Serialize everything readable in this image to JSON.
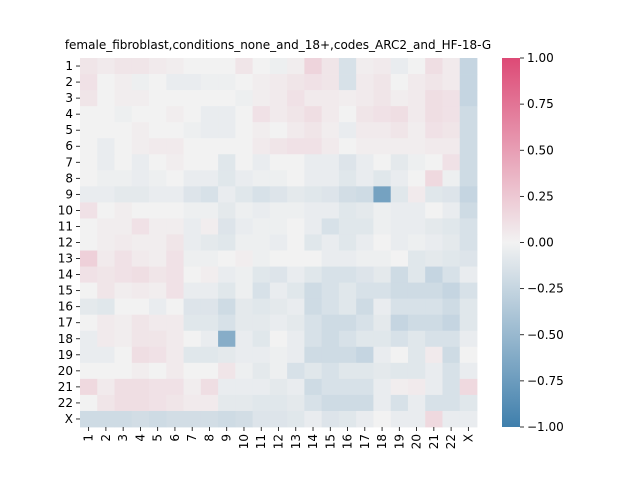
{
  "chart_data": {
    "type": "heatmap",
    "title": "female_fibroblast,conditions_none_and_18+,codes_ARC2_and_HF-18-G",
    "xlabel": "",
    "ylabel": "",
    "row_labels": [
      "1",
      "2",
      "3",
      "4",
      "5",
      "6",
      "7",
      "8",
      "9",
      "10",
      "11",
      "12",
      "13",
      "14",
      "15",
      "16",
      "17",
      "18",
      "19",
      "20",
      "21",
      "22",
      "X"
    ],
    "col_labels": [
      "1",
      "2",
      "3",
      "4",
      "5",
      "6",
      "7",
      "8",
      "9",
      "10",
      "11",
      "12",
      "13",
      "14",
      "15",
      "16",
      "17",
      "18",
      "19",
      "20",
      "21",
      "22",
      "X"
    ],
    "colorbar": {
      "min": -1.0,
      "max": 1.0,
      "ticks": [
        1.0,
        0.75,
        0.5,
        0.25,
        0.0,
        -0.25,
        -0.5,
        -0.75,
        -1.0
      ],
      "tick_labels": [
        "1.00",
        "0.75",
        "0.50",
        "0.25",
        "0.00",
        "−0.25",
        "−0.50",
        "−0.75",
        "−1.00"
      ],
      "low_color": "#3f7fac",
      "mid_color": "#f2f2f2",
      "high_color": "#dd4a76"
    },
    "values": [
      [
        0.08,
        0.05,
        0.08,
        0.08,
        0.05,
        0.03,
        0.0,
        0.0,
        0.0,
        0.08,
        0.0,
        -0.03,
        0.03,
        0.18,
        0.08,
        -0.15,
        0.03,
        0.05,
        -0.05,
        0.0,
        0.12,
        0.05,
        -0.25
      ],
      [
        0.1,
        0.0,
        0.03,
        -0.03,
        0.0,
        -0.05,
        -0.05,
        -0.03,
        -0.03,
        0.0,
        0.03,
        0.05,
        0.08,
        0.1,
        0.08,
        -0.15,
        0.05,
        0.08,
        0.0,
        0.05,
        0.08,
        0.05,
        -0.25
      ],
      [
        0.08,
        0.0,
        0.03,
        0.03,
        0.0,
        0.0,
        0.0,
        0.0,
        0.0,
        -0.03,
        0.03,
        0.05,
        0.1,
        0.05,
        0.05,
        0.03,
        0.05,
        0.08,
        0.03,
        0.05,
        0.12,
        0.1,
        -0.25
      ],
      [
        0.0,
        0.0,
        -0.03,
        0.0,
        0.0,
        0.03,
        0.0,
        -0.05,
        -0.05,
        0.0,
        0.1,
        0.05,
        0.08,
        0.12,
        0.05,
        0.0,
        0.08,
        0.1,
        0.12,
        0.05,
        0.12,
        0.1,
        -0.2
      ],
      [
        0.0,
        0.0,
        0.0,
        0.03,
        0.0,
        0.0,
        -0.03,
        -0.05,
        -0.05,
        0.0,
        0.03,
        0.0,
        0.05,
        0.08,
        0.03,
        -0.05,
        0.05,
        0.05,
        0.08,
        0.03,
        0.1,
        0.08,
        -0.2
      ],
      [
        0.0,
        -0.05,
        0.0,
        0.03,
        0.05,
        0.05,
        0.0,
        0.0,
        0.0,
        0.0,
        0.05,
        0.08,
        0.1,
        0.1,
        0.05,
        0.0,
        0.03,
        0.03,
        0.03,
        0.03,
        0.05,
        0.05,
        -0.2
      ],
      [
        0.0,
        -0.05,
        0.0,
        -0.05,
        0.0,
        0.03,
        0.0,
        0.0,
        -0.1,
        0.0,
        -0.05,
        0.0,
        0.0,
        -0.05,
        -0.05,
        -0.12,
        -0.05,
        0.0,
        -0.08,
        -0.03,
        0.0,
        0.1,
        -0.2
      ],
      [
        0.0,
        -0.03,
        -0.03,
        -0.05,
        -0.03,
        0.0,
        -0.05,
        -0.05,
        -0.1,
        -0.05,
        -0.03,
        -0.03,
        0.0,
        -0.05,
        -0.05,
        -0.1,
        -0.05,
        -0.1,
        -0.05,
        0.0,
        0.15,
        -0.03,
        -0.2
      ],
      [
        -0.05,
        -0.05,
        -0.08,
        -0.08,
        -0.05,
        -0.05,
        -0.12,
        -0.15,
        -0.05,
        -0.1,
        -0.15,
        -0.12,
        -0.08,
        -0.1,
        -0.12,
        -0.18,
        -0.2,
        -0.7,
        -0.1,
        0.05,
        -0.1,
        -0.12,
        -0.25
      ],
      [
        0.1,
        0.0,
        0.03,
        0.0,
        0.0,
        0.0,
        -0.03,
        -0.03,
        -0.08,
        -0.03,
        -0.05,
        -0.03,
        -0.03,
        -0.05,
        -0.05,
        -0.1,
        -0.08,
        -0.03,
        -0.05,
        -0.05,
        0.0,
        -0.05,
        -0.2
      ],
      [
        0.0,
        0.03,
        0.03,
        0.1,
        0.03,
        0.03,
        -0.05,
        0.03,
        -0.12,
        -0.05,
        -0.03,
        -0.03,
        0.0,
        -0.05,
        -0.15,
        -0.1,
        -0.1,
        -0.03,
        -0.05,
        -0.05,
        -0.08,
        -0.1,
        -0.15
      ],
      [
        0.0,
        0.03,
        0.05,
        0.03,
        0.03,
        0.08,
        -0.05,
        -0.08,
        -0.1,
        -0.03,
        -0.03,
        -0.05,
        0.0,
        -0.1,
        -0.05,
        -0.1,
        -0.05,
        0.0,
        -0.05,
        -0.03,
        -0.05,
        -0.08,
        -0.15
      ],
      [
        0.2,
        0.05,
        0.1,
        0.05,
        0.03,
        0.1,
        -0.03,
        -0.03,
        0.0,
        0.03,
        -0.03,
        0.0,
        0.0,
        0.0,
        -0.05,
        -0.05,
        -0.03,
        -0.03,
        0.0,
        -0.1,
        -0.08,
        -0.1,
        -0.12
      ],
      [
        0.1,
        0.08,
        0.1,
        0.12,
        0.08,
        0.1,
        0.0,
        0.03,
        -0.05,
        -0.03,
        -0.1,
        -0.12,
        -0.05,
        -0.1,
        -0.15,
        -0.15,
        -0.12,
        -0.08,
        -0.2,
        -0.1,
        -0.25,
        -0.15,
        -0.05
      ],
      [
        0.0,
        0.08,
        0.03,
        0.05,
        0.03,
        0.1,
        -0.05,
        -0.05,
        -0.1,
        -0.03,
        -0.15,
        -0.05,
        -0.1,
        -0.2,
        -0.15,
        -0.1,
        -0.15,
        -0.15,
        -0.2,
        -0.2,
        -0.2,
        -0.25,
        -0.15
      ],
      [
        -0.08,
        -0.1,
        0.0,
        0.0,
        -0.05,
        0.0,
        -0.12,
        -0.12,
        -0.2,
        -0.08,
        -0.1,
        -0.08,
        -0.05,
        -0.2,
        -0.15,
        -0.1,
        -0.2,
        -0.05,
        -0.15,
        -0.15,
        -0.15,
        -0.2,
        -0.1
      ],
      [
        0.0,
        0.05,
        0.03,
        0.08,
        0.05,
        0.05,
        -0.1,
        -0.1,
        -0.15,
        -0.08,
        -0.08,
        -0.05,
        -0.08,
        -0.15,
        -0.2,
        -0.2,
        -0.15,
        -0.08,
        -0.25,
        -0.2,
        -0.2,
        -0.25,
        -0.1
      ],
      [
        -0.05,
        0.05,
        0.03,
        0.08,
        0.08,
        0.05,
        0.0,
        -0.05,
        -0.6,
        -0.05,
        -0.1,
        0.0,
        -0.05,
        -0.15,
        -0.2,
        -0.15,
        -0.1,
        -0.1,
        -0.15,
        -0.1,
        -0.15,
        -0.15,
        -0.05
      ],
      [
        -0.05,
        -0.05,
        0.0,
        0.12,
        0.1,
        0.05,
        -0.1,
        -0.1,
        -0.08,
        -0.05,
        -0.05,
        -0.03,
        -0.05,
        -0.2,
        -0.2,
        -0.2,
        -0.25,
        -0.05,
        0.0,
        -0.1,
        0.05,
        -0.2,
        0.0
      ],
      [
        0.0,
        0.0,
        0.0,
        0.03,
        0.0,
        0.05,
        0.0,
        0.0,
        0.08,
        -0.03,
        -0.08,
        -0.03,
        -0.15,
        -0.1,
        -0.15,
        -0.1,
        -0.1,
        -0.08,
        -0.1,
        -0.1,
        -0.05,
        -0.15,
        -0.05
      ],
      [
        0.15,
        0.05,
        0.12,
        0.12,
        0.1,
        0.1,
        0.03,
        0.12,
        -0.05,
        -0.05,
        -0.05,
        -0.08,
        -0.05,
        -0.2,
        -0.15,
        -0.15,
        -0.15,
        -0.05,
        0.03,
        0.05,
        -0.05,
        -0.15,
        0.15
      ],
      [
        0.0,
        0.08,
        0.12,
        0.12,
        0.1,
        0.08,
        0.05,
        0.05,
        -0.08,
        -0.08,
        -0.1,
        -0.1,
        -0.08,
        -0.15,
        -0.2,
        -0.2,
        -0.2,
        -0.05,
        -0.15,
        -0.05,
        -0.15,
        -0.15,
        -0.1
      ],
      [
        -0.2,
        -0.2,
        -0.2,
        -0.18,
        -0.2,
        -0.18,
        -0.18,
        -0.18,
        -0.2,
        -0.18,
        -0.12,
        -0.12,
        -0.1,
        -0.05,
        -0.12,
        -0.1,
        -0.05,
        0.0,
        -0.05,
        -0.05,
        0.15,
        -0.05,
        -0.05
      ]
    ]
  }
}
